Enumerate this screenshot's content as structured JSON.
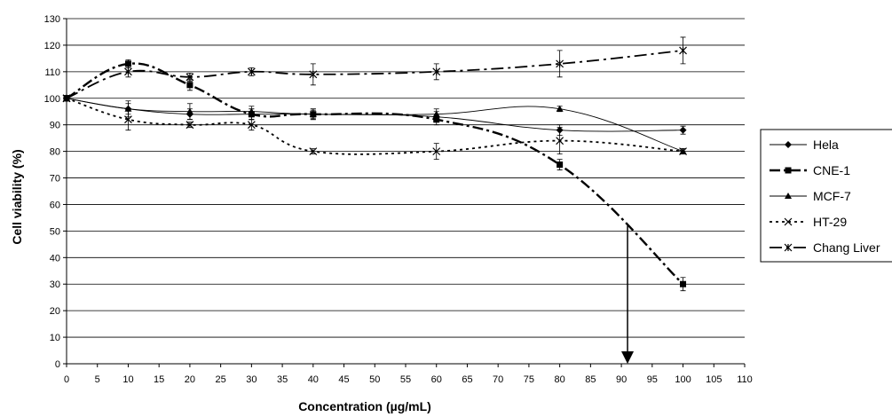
{
  "chart_data": {
    "type": "line",
    "title": "",
    "xlabel": "Concentration (µg/mL)",
    "ylabel": "Cell viability (%)",
    "xlim": [
      0,
      110
    ],
    "ylim": [
      0,
      130
    ],
    "x_ticks": [
      "0",
      "5",
      "10",
      "15",
      "20",
      "25",
      "30",
      "35",
      "40",
      "45",
      "50",
      "55",
      "60",
      "65",
      "70",
      "75",
      "80",
      "85",
      "90",
      "95",
      "100",
      "105",
      "110"
    ],
    "y_ticks": [
      "0",
      "10",
      "20",
      "30",
      "40",
      "50",
      "60",
      "70",
      "80",
      "90",
      "100",
      "110",
      "120",
      "130"
    ],
    "grid": "horizontal",
    "legend_position": "right",
    "x": [
      0,
      10,
      20,
      30,
      40,
      60,
      80,
      100
    ],
    "series": [
      {
        "name": "Hela",
        "marker": "diamond",
        "dash": "",
        "values": [
          100,
          96,
          94,
          94,
          94,
          93,
          88,
          88
        ],
        "errors": [
          1,
          2,
          2,
          2,
          1.5,
          2,
          2,
          1.5
        ]
      },
      {
        "name": "CNE-1",
        "marker": "square",
        "dash": "12 4 3 4",
        "values": [
          100,
          113,
          105,
          94,
          94,
          92,
          75,
          30
        ],
        "errors": [
          1,
          1.5,
          2,
          2,
          2,
          2,
          2,
          2.5
        ]
      },
      {
        "name": "MCF-7",
        "marker": "triangle",
        "dash": "",
        "values": [
          100,
          96,
          95,
          95,
          94,
          94,
          96,
          80
        ],
        "errors": [
          1,
          3,
          3,
          2,
          2,
          2,
          1,
          1
        ]
      },
      {
        "name": "HT-29",
        "marker": "x",
        "dash": "3 4",
        "values": [
          100,
          92,
          90,
          90,
          80,
          80,
          84,
          80
        ],
        "errors": [
          1,
          4,
          1,
          2,
          1,
          3,
          5,
          1
        ]
      },
      {
        "name": "Chang Liver",
        "marker": "star",
        "dash": "14 5 3 5",
        "values": [
          100,
          110,
          108,
          110,
          109,
          110,
          113,
          118
        ],
        "errors": [
          1,
          2,
          1.5,
          1.5,
          4,
          3,
          5,
          5
        ]
      }
    ],
    "annotation": {
      "type": "arrow",
      "x": 91,
      "y_from": 52,
      "y_to": 0
    }
  }
}
